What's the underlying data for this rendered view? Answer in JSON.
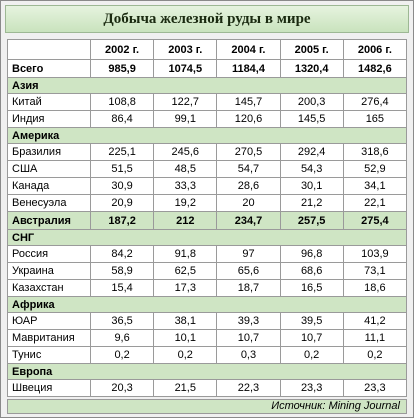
{
  "header": {
    "title": "Добыча железной руды в мире"
  },
  "table": {
    "columns": [
      "2002 г.",
      "2003 г.",
      "2004 г.",
      "2005 г.",
      "2006 г."
    ],
    "total": {
      "label": "Всего",
      "values": [
        "985,9",
        "1074,5",
        "1184,4",
        "1320,4",
        "1482,6"
      ]
    },
    "groups": [
      {
        "name": "Азия",
        "rows": [
          {
            "label": "Китай",
            "values": [
              "108,8",
              "122,7",
              "145,7",
              "200,3",
              "276,4"
            ]
          },
          {
            "label": "Индия",
            "values": [
              "86,4",
              "99,1",
              "120,6",
              "145,5",
              "165"
            ]
          }
        ]
      },
      {
        "name": "Америка",
        "rows": [
          {
            "label": "Бразилия",
            "values": [
              "225,1",
              "245,6",
              "270,5",
              "292,4",
              "318,6"
            ]
          },
          {
            "label": "США",
            "values": [
              "51,5",
              "48,5",
              "54,7",
              "54,3",
              "52,9"
            ]
          },
          {
            "label": "Канада",
            "values": [
              "30,9",
              "33,3",
              "28,6",
              "30,1",
              "34,1"
            ]
          },
          {
            "label": "Венесуэла",
            "values": [
              "20,9",
              "19,2",
              "20",
              "21,2",
              "22,1"
            ]
          }
        ]
      },
      {
        "name": "Австралия",
        "values": [
          "187,2",
          "212",
          "234,7",
          "257,5",
          "275,4"
        ]
      },
      {
        "name": "СНГ",
        "rows": [
          {
            "label": "Россия",
            "values": [
              "84,2",
              "91,8",
              "97",
              "96,8",
              "103,9"
            ]
          },
          {
            "label": "Украина",
            "values": [
              "58,9",
              "62,5",
              "65,6",
              "68,6",
              "73,1"
            ]
          },
          {
            "label": "Казахстан",
            "values": [
              "15,4",
              "17,3",
              "18,7",
              "16,5",
              "18,6"
            ]
          }
        ]
      },
      {
        "name": "Африка",
        "rows": [
          {
            "label": "ЮАР",
            "values": [
              "36,5",
              "38,1",
              "39,3",
              "39,5",
              "41,2"
            ]
          },
          {
            "label": "Мавритания",
            "values": [
              "9,6",
              "10,1",
              "10,7",
              "10,7",
              "11,1"
            ]
          },
          {
            "label": "Тунис",
            "values": [
              "0,2",
              "0,2",
              "0,3",
              "0,2",
              "0,2"
            ]
          }
        ]
      },
      {
        "name": "Европа",
        "rows": [
          {
            "label": "Швеция",
            "values": [
              "20,3",
              "21,5",
              "22,3",
              "23,3",
              "23,3"
            ]
          }
        ]
      }
    ]
  },
  "source": "Источник: Mining Journal"
}
